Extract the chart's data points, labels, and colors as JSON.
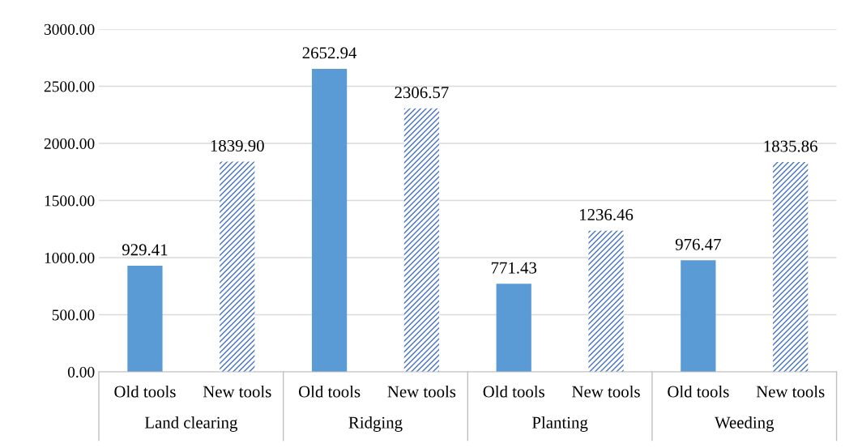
{
  "chart_data": {
    "type": "bar",
    "categories": [
      "Land clearing",
      "Ridging",
      "Planting",
      "Weeding"
    ],
    "series": [
      {
        "name": "Old tools",
        "color": "#5b9bd5",
        "values": [
          929.41,
          2652.94,
          771.43,
          976.47
        ],
        "value_labels": [
          "929.41",
          "2652.94",
          "771.43",
          "976.47"
        ]
      },
      {
        "name": "New tools",
        "color": "#4472c4",
        "values": [
          1839.9,
          2306.57,
          1236.46,
          1835.86
        ],
        "value_labels": [
          "1839.90",
          "2306.57",
          "1236.46",
          "1835.86"
        ]
      }
    ],
    "ylim": [
      0,
      3000
    ],
    "yticks": [
      {
        "value": 0,
        "label": "0.00"
      },
      {
        "value": 500,
        "label": "500.00"
      },
      {
        "value": 1000,
        "label": "1000.00"
      },
      {
        "value": 1500,
        "label": "1500.00"
      },
      {
        "value": 2000,
        "label": "2000.00"
      },
      {
        "value": 2500,
        "label": "2500.00"
      },
      {
        "value": 3000,
        "label": "3000.00"
      }
    ],
    "grid": "y",
    "legend": false
  }
}
